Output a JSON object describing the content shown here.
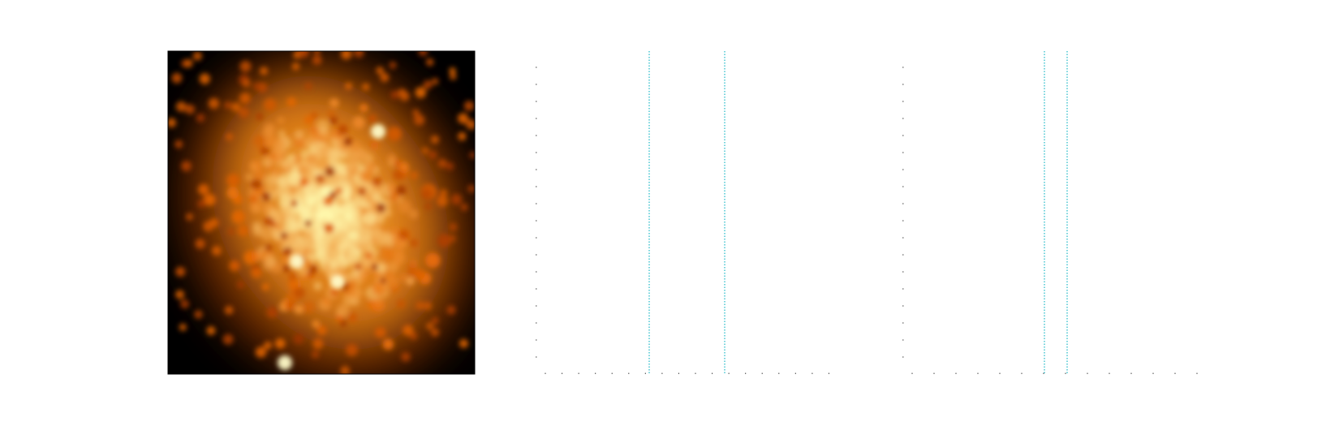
{
  "chart_data": [
    {
      "type": "heatmap",
      "colormap": "afmhot",
      "colors": {
        "background": "#000000",
        "low": "#7a1a00",
        "mid": "#e86a05",
        "high": "#fffbb0"
      },
      "bright_knots": 4
    },
    {
      "type": "line",
      "series": [],
      "vertical_lines": [
        {
          "style": "dotted",
          "color": "#2bbcc9"
        },
        {
          "style": "dotted",
          "color": "#2bbcc9"
        }
      ],
      "x_minor_ticks": 18,
      "y_minor_ticks": 18,
      "grid": false
    },
    {
      "type": "line",
      "series": [],
      "vertical_lines": [
        {
          "style": "dotted",
          "color": "#2bbcc9"
        },
        {
          "style": "dotted",
          "color": "#2bbcc9"
        }
      ],
      "x_minor_ticks": 14,
      "y_minor_ticks": 18,
      "grid": false
    }
  ]
}
